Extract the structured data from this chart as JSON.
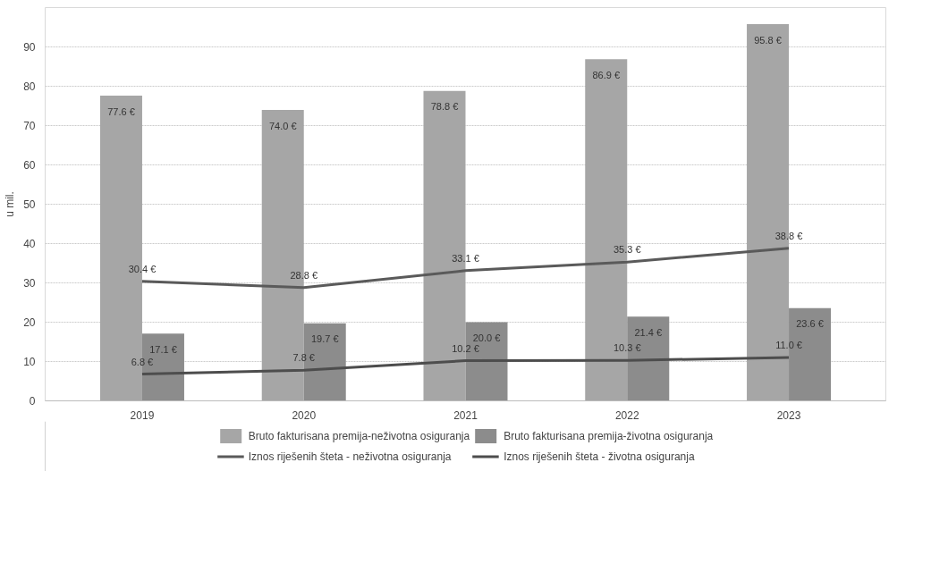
{
  "chart_data": {
    "type": "bar",
    "ylabel": "u mil.",
    "categories": [
      "2019",
      "2020",
      "2021",
      "2022",
      "2023"
    ],
    "ylim": [
      0,
      100
    ],
    "yticks": [
      0,
      10,
      20,
      30,
      40,
      50,
      60,
      70,
      80,
      90
    ],
    "grid": "y",
    "legend": "bottom",
    "series": [
      {
        "name": "Bruto fakturisana premija-neživotna osiguranja",
        "color": "#a6a6a6",
        "values": [
          77.6,
          74.0,
          78.8,
          86.9,
          95.8
        ],
        "value_labels": [
          "77.6 €",
          "74.0 €",
          "78.8 €",
          "86.9 €",
          "95.8 €"
        ]
      },
      {
        "name": "Bruto fakturisana premija-životna osiguranja",
        "color": "#8c8c8c",
        "values": [
          17.1,
          19.7,
          20.0,
          21.4,
          23.6
        ],
        "value_labels": [
          "17.1 €",
          "19.7 €",
          "20.0 €",
          "21.4 €",
          "23.6 €"
        ]
      },
      {
        "name": "Iznos riješenih šteta - neživotna osiguranja",
        "type": "line",
        "color": "#5a5a5a",
        "values": [
          30.4,
          28.8,
          33.1,
          35.3,
          38.8
        ],
        "value_labels": [
          "30.4 €",
          "28.8 €",
          "33.1 €",
          "35.3 €",
          "38.8 €"
        ]
      },
      {
        "name": "Iznos riješenih šteta - životna osiguranja",
        "type": "line",
        "color": "#4d4d4d",
        "values": [
          6.8,
          7.8,
          10.2,
          10.3,
          11.0
        ],
        "value_labels": [
          "6.8 €",
          "7.8 €",
          "10.2 €",
          "10.3 €",
          "11.0 €"
        ]
      }
    ]
  }
}
